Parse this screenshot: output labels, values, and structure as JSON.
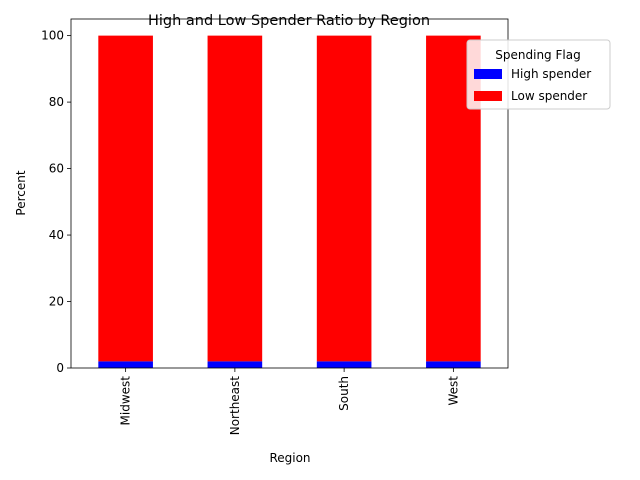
{
  "chart_data": {
    "type": "bar",
    "stacked": true,
    "title": "High and Low Spender Ratio by Region",
    "xlabel": "Region",
    "ylabel": "Percent",
    "categories": [
      "Midwest",
      "Northeast",
      "South",
      "West"
    ],
    "series": [
      {
        "name": "High spender",
        "values": [
          2,
          2,
          2,
          2
        ],
        "color": "#0000ff"
      },
      {
        "name": "Low spender",
        "values": [
          98,
          98,
          98,
          98
        ],
        "color": "#ff0000"
      }
    ],
    "ylim": [
      0,
      105
    ],
    "yticks": [
      0,
      20,
      40,
      60,
      80,
      100
    ],
    "grid": false,
    "legend": {
      "title": "Spending Flag",
      "placement": "top-right"
    }
  }
}
